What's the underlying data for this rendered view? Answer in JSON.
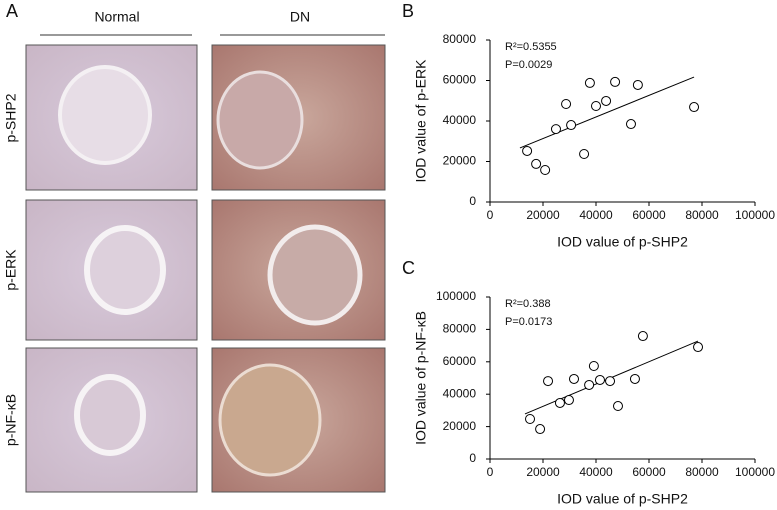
{
  "panel_a": {
    "label": "A",
    "columns": [
      "Normal",
      "DN"
    ],
    "rows": [
      "p-SHP2",
      "p-ERK",
      "p-NF-κB"
    ]
  },
  "chart_data": [
    {
      "type": "scatter",
      "panel": "B",
      "xlabel": "IOD value of p-SHP2",
      "ylabel": "IOD value of p-ERK",
      "annotations": [
        "R²=0.5355",
        "P=0.0029"
      ],
      "x": [
        14000,
        17400,
        20800,
        24900,
        28700,
        30600,
        35500,
        37700,
        40000,
        43800,
        47200,
        53200,
        55800,
        77000
      ],
      "values": [
        25200,
        18800,
        15800,
        36000,
        48400,
        38000,
        23700,
        58800,
        47400,
        49900,
        59300,
        38500,
        57800,
        46900
      ],
      "trendline": {
        "x": [
          11300,
          77000
        ],
        "values": [
          26700,
          61700
        ]
      },
      "xlim": [
        0,
        100000
      ],
      "xticks": [
        0,
        20000,
        40000,
        60000,
        80000,
        100000
      ],
      "ylim": [
        0,
        80000
      ],
      "yticks": [
        0,
        20000,
        40000,
        60000,
        80000
      ],
      "color": "#000000"
    },
    {
      "type": "scatter",
      "panel": "C",
      "xlabel": "IOD value of p-SHP2",
      "ylabel": "IOD value of p-NF-κB",
      "annotations": [
        "R²=0.388",
        "P=0.0173"
      ],
      "x": [
        15100,
        18900,
        21900,
        26400,
        29800,
        31700,
        37400,
        39200,
        41500,
        45300,
        48300,
        54700,
        57700,
        78500
      ],
      "values": [
        24700,
        18500,
        48100,
        34600,
        36400,
        49400,
        45700,
        57400,
        48800,
        48100,
        32700,
        49400,
        75900,
        69100
      ],
      "trendline": {
        "x": [
          13200,
          78500
        ],
        "values": [
          27800,
          72800
        ]
      },
      "xlim": [
        0,
        100000
      ],
      "xticks": [
        0,
        20000,
        40000,
        60000,
        80000,
        100000
      ],
      "ylim": [
        0,
        100000
      ],
      "yticks": [
        0,
        20000,
        40000,
        60000,
        80000,
        100000
      ],
      "color": "#000000"
    }
  ]
}
